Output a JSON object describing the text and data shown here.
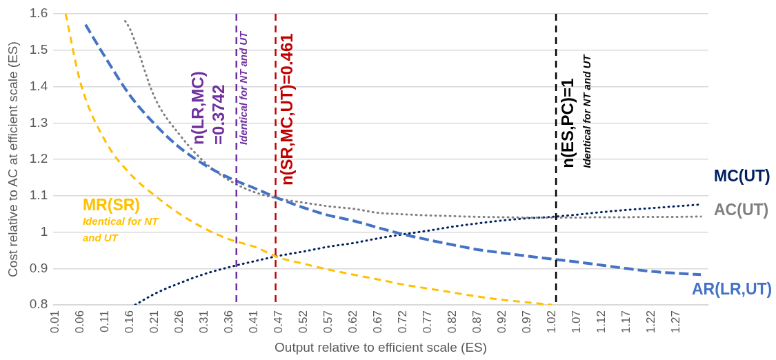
{
  "chart_data": {
    "type": "line",
    "xlabel": "Output relative to efficient scale (ES)",
    "ylabel": "Cost relative to AC at efficient scale (ES)",
    "categories": [
      "0.01",
      null,
      null,
      null,
      null,
      "0.06",
      null,
      null,
      null,
      null,
      "0.11",
      null,
      null,
      null,
      null,
      "0.16",
      null,
      null,
      null,
      null,
      "0.21",
      null,
      null,
      null,
      null,
      "0.26",
      null,
      null,
      null,
      null,
      "0.31",
      null,
      null,
      null,
      null,
      "0.36",
      null,
      null,
      null,
      null,
      "0.41",
      null,
      null,
      null,
      null,
      "0.47",
      null,
      null,
      null,
      null,
      "0.52",
      null,
      null,
      null,
      null,
      "0.57",
      null,
      null,
      null,
      null,
      "0.62",
      null,
      null,
      null,
      null,
      "0.67",
      null,
      null,
      null,
      null,
      "0.72",
      null,
      null,
      null,
      null,
      "0.77",
      null,
      null,
      null,
      null,
      "0.82",
      null,
      null,
      null,
      null,
      "0.87",
      null,
      null,
      null,
      null,
      "0.92",
      null,
      null,
      null,
      null,
      "0.97",
      null,
      null,
      null,
      null,
      "1.02",
      null,
      null,
      null,
      null,
      "1.07",
      null,
      null,
      null,
      null,
      "1.12",
      null,
      null,
      null,
      null,
      "1.17",
      null,
      null,
      null,
      null,
      "1.22",
      null,
      null,
      null,
      null,
      "1.27",
      null,
      null,
      null,
      null,
      null,
      null
    ],
    "series": [
      {
        "name": "MR(SR)",
        "color": "#ffc000",
        "line_style": "dashed",
        "values": [
          null,
          null,
          1.6,
          null,
          null,
          1.41,
          null,
          null,
          null,
          null,
          1.25,
          null,
          null,
          null,
          null,
          1.16,
          null,
          null,
          null,
          null,
          1.1,
          null,
          null,
          null,
          null,
          1.05,
          null,
          null,
          null,
          null,
          1.01,
          null,
          null,
          null,
          null,
          0.98,
          null,
          null,
          null,
          null,
          0.96,
          null,
          null,
          null,
          null,
          0.93,
          null,
          null,
          null,
          null,
          0.913,
          null,
          null,
          null,
          null,
          0.897,
          null,
          null,
          null,
          null,
          0.883,
          null,
          null,
          null,
          null,
          0.87,
          null,
          null,
          null,
          null,
          0.856,
          null,
          null,
          null,
          null,
          0.845,
          null,
          null,
          null,
          null,
          0.834,
          null,
          null,
          null,
          null,
          0.823,
          null,
          null,
          null,
          null,
          0.814,
          null,
          null,
          null,
          null,
          0.807,
          null,
          null,
          null,
          null,
          0.8,
          null,
          null,
          null,
          null,
          null,
          null,
          null,
          null,
          null,
          null,
          null,
          null,
          null,
          null,
          null,
          null,
          null,
          null,
          null,
          null,
          null,
          null,
          null,
          null,
          null,
          null,
          null,
          null,
          null,
          null,
          null
        ]
      },
      {
        "name": "AR(LR,UT)",
        "color": "#4472c4",
        "line_style": "dashed",
        "values": [
          null,
          null,
          null,
          null,
          null,
          null,
          1.57,
          null,
          null,
          null,
          1.48,
          null,
          null,
          null,
          null,
          1.375,
          null,
          null,
          null,
          null,
          1.296,
          null,
          null,
          null,
          null,
          1.232,
          null,
          null,
          null,
          null,
          1.185,
          null,
          null,
          null,
          null,
          1.149,
          null,
          null,
          null,
          null,
          1.121,
          null,
          null,
          null,
          null,
          1.092,
          null,
          null,
          null,
          null,
          1.067,
          null,
          null,
          null,
          null,
          1.046,
          null,
          null,
          null,
          null,
          1.031,
          null,
          null,
          null,
          null,
          1.012,
          null,
          null,
          null,
          null,
          0.994,
          null,
          null,
          null,
          null,
          0.979,
          null,
          null,
          null,
          null,
          0.965,
          null,
          null,
          null,
          null,
          0.952,
          null,
          null,
          null,
          null,
          0.943,
          null,
          null,
          null,
          null,
          0.934,
          null,
          null,
          null,
          null,
          0.926,
          null,
          null,
          null,
          null,
          0.918,
          null,
          null,
          null,
          null,
          0.909,
          null,
          null,
          null,
          null,
          0.9,
          null,
          null,
          null,
          null,
          0.892,
          null,
          null,
          null,
          null,
          0.887,
          null,
          null,
          null,
          null,
          0.883,
          null
        ]
      },
      {
        "name": "AC(UT)",
        "color": "#7f7f7f",
        "line_style": "dotted",
        "values": [
          null,
          null,
          null,
          null,
          null,
          null,
          null,
          null,
          null,
          null,
          null,
          null,
          null,
          null,
          1.58,
          1.557,
          null,
          null,
          null,
          null,
          1.368,
          null,
          null,
          null,
          null,
          1.267,
          null,
          null,
          null,
          null,
          1.192,
          null,
          null,
          null,
          null,
          1.142,
          null,
          null,
          null,
          null,
          1.11,
          null,
          null,
          null,
          null,
          1.092,
          null,
          null,
          null,
          null,
          1.081,
          null,
          null,
          null,
          null,
          1.071,
          null,
          null,
          null,
          null,
          1.064,
          null,
          null,
          null,
          null,
          1.053,
          null,
          null,
          null,
          null,
          1.049,
          null,
          null,
          null,
          null,
          1.046,
          null,
          null,
          null,
          null,
          1.044,
          null,
          null,
          null,
          null,
          1.042,
          null,
          null,
          null,
          null,
          1.041,
          null,
          null,
          null,
          null,
          1.04,
          null,
          null,
          null,
          null,
          1.04,
          null,
          null,
          null,
          null,
          1.04,
          null,
          null,
          null,
          null,
          1.041,
          null,
          null,
          null,
          null,
          1.041,
          null,
          null,
          null,
          null,
          1.042,
          null,
          null,
          null,
          null,
          1.042,
          null,
          null,
          null,
          null,
          1.043,
          null
        ]
      },
      {
        "name": "MC(UT)",
        "color": "#002060",
        "line_style": "dotted",
        "values": [
          null,
          null,
          null,
          null,
          null,
          null,
          null,
          null,
          null,
          null,
          null,
          null,
          null,
          null,
          null,
          null,
          0.8,
          null,
          null,
          null,
          0.831,
          null,
          null,
          null,
          null,
          0.86,
          null,
          null,
          null,
          null,
          0.885,
          null,
          null,
          null,
          null,
          0.904,
          null,
          null,
          null,
          null,
          0.92,
          null,
          null,
          null,
          null,
          0.935,
          null,
          null,
          null,
          null,
          0.947,
          null,
          null,
          null,
          null,
          0.96,
          null,
          null,
          null,
          null,
          0.97,
          null,
          null,
          null,
          null,
          0.983,
          null,
          null,
          null,
          null,
          0.994,
          null,
          null,
          null,
          null,
          1.004,
          null,
          null,
          null,
          null,
          1.015,
          null,
          null,
          null,
          null,
          1.024,
          null,
          null,
          null,
          null,
          1.032,
          null,
          null,
          null,
          null,
          1.038,
          null,
          null,
          null,
          null,
          1.042,
          null,
          null,
          null,
          null,
          1.048,
          null,
          null,
          null,
          null,
          1.055,
          null,
          null,
          null,
          null,
          1.061,
          null,
          null,
          null,
          null,
          1.066,
          null,
          null,
          null,
          null,
          1.071,
          null,
          null,
          null,
          null,
          1.076,
          null
        ]
      }
    ],
    "ylim": [
      0.8,
      1.6
    ],
    "yticks": [
      0.8,
      0.9,
      1,
      1.1,
      1.2,
      1.3,
      1.4,
      1.5,
      1.6
    ],
    "grid": "y",
    "marker": "none",
    "annotations": [
      "Identical for NT and UT",
      "n(LR,MC) =0.3742",
      "Identical for NT and UT",
      "n(SR,MC,UT)=0.461",
      "n(ES,PC)=1",
      "Identical for NT and UT"
    ]
  }
}
